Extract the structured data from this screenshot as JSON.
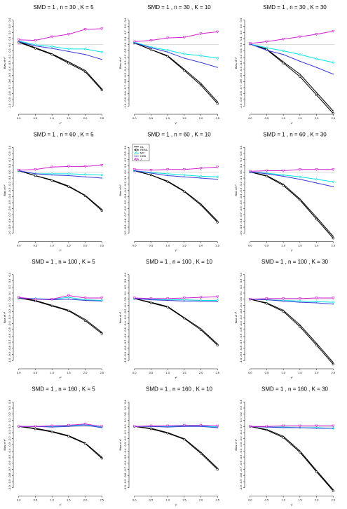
{
  "chart_data": {
    "type": "line",
    "panels_grid": {
      "rows": 4,
      "cols": 3
    },
    "x": [
      0.0,
      0.5,
      1.0,
      1.5,
      2.0,
      2.5
    ],
    "x_tick_labels": [
      "0.0",
      "0.5",
      "1.0",
      "1.5",
      "2.0",
      "2.5"
    ],
    "xlabel": "τ²",
    "ylabel": "Bias of τ²",
    "xlim": [
      0,
      2.5
    ],
    "ylim": [
      -1.1,
      0.5
    ],
    "y_ticks": [
      0.4,
      0.3,
      0.2,
      0.1,
      0.0,
      -0.1,
      -0.2,
      -0.3,
      -0.4,
      -0.5,
      -0.6,
      -0.7,
      -0.8,
      -0.9,
      -1.0
    ],
    "y_tick_labels": [
      "0.4",
      "0.3",
      "0.2",
      "0.1",
      "0.0",
      "-0.1",
      "-0.2",
      "-0.3",
      "-0.4",
      "-0.5",
      "-0.6",
      "-0.7",
      "-0.8",
      "-0.9",
      "-1.0"
    ],
    "reference_line": 0,
    "grid": false,
    "legend": {
      "panel_index": 4,
      "placement": "top-left",
      "entries": [
        "DL",
        "REML",
        "MP",
        "KDB",
        "J"
      ]
    },
    "series_styles": [
      {
        "color": "#000000",
        "marker": "none"
      },
      {
        "color": "#000000",
        "marker": "circle"
      },
      {
        "color": "#00e5e5",
        "marker": "diamond"
      },
      {
        "color": "#3b3bd6",
        "marker": "none"
      },
      {
        "color": "#d21fd2",
        "marker": "triangle-down"
      }
    ],
    "panels": [
      {
        "title": "SMD = 1 , n = 30 , K = 5",
        "series": [
          {
            "name": "DL",
            "values": [
              0.05,
              -0.05,
              -0.15,
              -0.28,
              -0.42,
              -0.72
            ]
          },
          {
            "name": "REML",
            "values": [
              0.04,
              -0.06,
              -0.16,
              -0.3,
              -0.44,
              -0.74
            ]
          },
          {
            "name": "MP",
            "values": [
              0.06,
              0.0,
              -0.03,
              -0.07,
              -0.07,
              -0.12
            ]
          },
          {
            "name": "KDB",
            "values": [
              0.05,
              -0.02,
              -0.06,
              -0.11,
              -0.16,
              -0.24
            ]
          },
          {
            "name": "J",
            "values": [
              0.08,
              0.07,
              0.13,
              0.17,
              0.25,
              0.26
            ]
          }
        ]
      },
      {
        "title": "SMD = 1 , n = 30 , K = 10",
        "series": [
          {
            "name": "DL",
            "values": [
              0.03,
              -0.08,
              -0.18,
              -0.4,
              -0.63,
              -0.93
            ]
          },
          {
            "name": "REML",
            "values": [
              0.03,
              -0.08,
              -0.19,
              -0.42,
              -0.66,
              -0.96
            ]
          },
          {
            "name": "MP",
            "values": [
              0.04,
              -0.04,
              -0.09,
              -0.15,
              -0.18,
              -0.22
            ]
          },
          {
            "name": "KDB",
            "values": [
              0.03,
              -0.05,
              -0.12,
              -0.22,
              -0.29,
              -0.37
            ]
          },
          {
            "name": "J",
            "values": [
              0.05,
              0.07,
              0.11,
              0.12,
              0.18,
              0.21
            ]
          }
        ]
      },
      {
        "title": "SMD = 1 , n = 30 , K = 30",
        "series": [
          {
            "name": "DL",
            "values": [
              0.01,
              -0.07,
              -0.28,
              -0.48,
              -0.78,
              -1.08
            ]
          },
          {
            "name": "REML",
            "values": [
              0.01,
              -0.08,
              -0.3,
              -0.52,
              -0.82,
              -1.12
            ]
          },
          {
            "name": "MP",
            "values": [
              0.01,
              -0.05,
              -0.1,
              -0.16,
              -0.23,
              -0.29
            ]
          },
          {
            "name": "KDB",
            "values": [
              0.01,
              -0.09,
              -0.16,
              -0.27,
              -0.37,
              -0.48
            ]
          },
          {
            "name": "J",
            "values": [
              0.02,
              0.05,
              0.09,
              0.13,
              0.17,
              0.22
            ]
          }
        ]
      },
      {
        "title": "SMD = 1 , n = 60 , K = 5",
        "series": [
          {
            "name": "DL",
            "values": [
              0.02,
              -0.06,
              -0.13,
              -0.23,
              -0.38,
              -0.61
            ]
          },
          {
            "name": "REML",
            "values": [
              0.02,
              -0.06,
              -0.14,
              -0.24,
              -0.39,
              -0.63
            ]
          },
          {
            "name": "MP",
            "values": [
              0.02,
              -0.03,
              -0.03,
              -0.03,
              -0.04,
              -0.05
            ]
          },
          {
            "name": "KDB",
            "values": [
              0.02,
              -0.03,
              -0.05,
              -0.06,
              -0.08,
              -0.1
            ]
          },
          {
            "name": "J",
            "values": [
              0.03,
              0.04,
              0.08,
              0.09,
              0.09,
              0.11
            ]
          }
        ]
      },
      {
        "title": "SMD = 1 , n = 60 , K = 10",
        "series": [
          {
            "name": "DL",
            "values": [
              0.02,
              -0.05,
              -0.15,
              -0.31,
              -0.52,
              -0.8
            ]
          },
          {
            "name": "REML",
            "values": [
              0.02,
              -0.05,
              -0.16,
              -0.32,
              -0.54,
              -0.82
            ]
          },
          {
            "name": "MP",
            "values": [
              0.02,
              -0.01,
              -0.03,
              -0.05,
              -0.07,
              -0.08
            ]
          },
          {
            "name": "KDB",
            "values": [
              0.02,
              -0.02,
              -0.06,
              -0.08,
              -0.1,
              -0.12
            ]
          },
          {
            "name": "J",
            "values": [
              0.04,
              0.03,
              0.04,
              0.04,
              0.06,
              0.08
            ]
          }
        ]
      },
      {
        "title": "SMD = 1 , n = 60 , K = 30",
        "series": [
          {
            "name": "DL",
            "values": [
              0.0,
              -0.06,
              -0.2,
              -0.44,
              -0.74,
              -1.05
            ]
          },
          {
            "name": "REML",
            "values": [
              0.0,
              -0.07,
              -0.22,
              -0.46,
              -0.77,
              -1.08
            ]
          },
          {
            "name": "MP",
            "values": [
              0.0,
              -0.02,
              -0.05,
              -0.08,
              -0.12,
              -0.16
            ]
          },
          {
            "name": "KDB",
            "values": [
              0.0,
              -0.03,
              -0.07,
              -0.12,
              -0.18,
              -0.24
            ]
          },
          {
            "name": "J",
            "values": [
              0.01,
              0.02,
              0.02,
              0.04,
              0.04,
              0.04
            ]
          }
        ]
      },
      {
        "title": "SMD = 1 , n = 100 , K = 5",
        "series": [
          {
            "name": "DL",
            "values": [
              0.02,
              -0.02,
              -0.1,
              -0.18,
              -0.33,
              -0.54
            ]
          },
          {
            "name": "REML",
            "values": [
              0.02,
              -0.03,
              -0.11,
              -0.19,
              -0.35,
              -0.56
            ]
          },
          {
            "name": "MP",
            "values": [
              0.02,
              0.01,
              0.0,
              0.03,
              -0.01,
              -0.02
            ]
          },
          {
            "name": "KDB",
            "values": [
              0.02,
              0.0,
              -0.01,
              0.0,
              -0.02,
              -0.03
            ]
          },
          {
            "name": "J",
            "values": [
              0.03,
              0.0,
              0.0,
              0.06,
              0.02,
              0.02
            ]
          }
        ]
      },
      {
        "title": "SMD = 1 , n = 100 , K = 10",
        "series": [
          {
            "name": "DL",
            "values": [
              0.01,
              -0.05,
              -0.12,
              -0.3,
              -0.48,
              -0.73
            ]
          },
          {
            "name": "REML",
            "values": [
              0.01,
              -0.06,
              -0.13,
              -0.31,
              -0.5,
              -0.75
            ]
          },
          {
            "name": "MP",
            "values": [
              0.01,
              0.0,
              -0.01,
              -0.01,
              -0.02,
              -0.02
            ]
          },
          {
            "name": "KDB",
            "values": [
              0.01,
              -0.01,
              -0.02,
              -0.03,
              -0.03,
              -0.04
            ]
          },
          {
            "name": "J",
            "values": [
              0.02,
              0.01,
              0.01,
              0.02,
              0.03,
              0.04
            ]
          }
        ]
      },
      {
        "title": "SMD = 1 , n = 100 , K = 30",
        "series": [
          {
            "name": "DL",
            "values": [
              0.0,
              -0.06,
              -0.18,
              -0.42,
              -0.72,
              -1.03
            ]
          },
          {
            "name": "REML",
            "values": [
              0.0,
              -0.07,
              -0.2,
              -0.45,
              -0.75,
              -1.06
            ]
          },
          {
            "name": "MP",
            "values": [
              0.0,
              -0.01,
              -0.02,
              -0.03,
              -0.04,
              -0.05
            ]
          },
          {
            "name": "KDB",
            "values": [
              0.0,
              -0.01,
              -0.03,
              -0.05,
              -0.06,
              -0.08
            ]
          },
          {
            "name": "J",
            "values": [
              0.0,
              0.01,
              0.01,
              0.01,
              0.02,
              0.02
            ]
          }
        ]
      },
      {
        "title": "SMD = 1 , n = 160 , K = 5",
        "series": [
          {
            "name": "DL",
            "values": [
              0.0,
              -0.03,
              -0.08,
              -0.15,
              -0.27,
              -0.5
            ]
          },
          {
            "name": "REML",
            "values": [
              0.0,
              -0.04,
              -0.09,
              -0.16,
              -0.28,
              -0.52
            ]
          },
          {
            "name": "MP",
            "values": [
              0.0,
              0.0,
              0.0,
              0.01,
              0.03,
              -0.01
            ]
          },
          {
            "name": "KDB",
            "values": [
              0.0,
              0.0,
              -0.01,
              0.0,
              0.02,
              -0.02
            ]
          },
          {
            "name": "J",
            "values": [
              0.0,
              0.0,
              0.01,
              0.02,
              0.04,
              0.0
            ]
          }
        ]
      },
      {
        "title": "SMD = 1 , n = 160 , K = 10",
        "series": [
          {
            "name": "DL",
            "values": [
              0.0,
              -0.03,
              -0.1,
              -0.2,
              -0.42,
              -0.68
            ]
          },
          {
            "name": "REML",
            "values": [
              0.0,
              -0.04,
              -0.11,
              -0.21,
              -0.44,
              -0.7
            ]
          },
          {
            "name": "MP",
            "values": [
              0.0,
              0.0,
              0.0,
              0.01,
              0.01,
              -0.01
            ]
          },
          {
            "name": "KDB",
            "values": [
              0.0,
              0.0,
              -0.01,
              0.0,
              0.0,
              -0.02
            ]
          },
          {
            "name": "J",
            "values": [
              0.0,
              0.01,
              0.01,
              0.02,
              0.02,
              0.01
            ]
          }
        ]
      },
      {
        "title": "SMD = 1 , n = 160 , K = 30",
        "series": [
          {
            "name": "DL",
            "values": [
              0.0,
              -0.05,
              -0.16,
              -0.4,
              -0.72,
              -1.03
            ]
          },
          {
            "name": "REML",
            "values": [
              0.0,
              -0.06,
              -0.18,
              -0.42,
              -0.74,
              -1.05
            ]
          },
          {
            "name": "MP",
            "values": [
              0.0,
              -0.01,
              -0.01,
              -0.02,
              -0.02,
              -0.03
            ]
          },
          {
            "name": "KDB",
            "values": [
              0.0,
              -0.01,
              -0.02,
              -0.02,
              -0.03,
              -0.03
            ]
          },
          {
            "name": "J",
            "values": [
              0.0,
              0.0,
              0.01,
              0.01,
              0.01,
              0.01
            ]
          }
        ]
      }
    ]
  }
}
